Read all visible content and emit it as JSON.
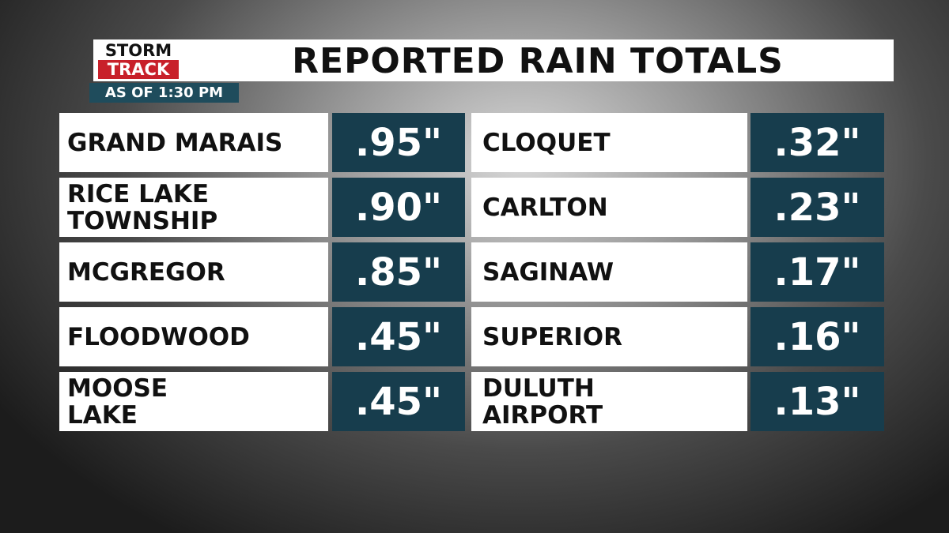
{
  "header": {
    "logo": [
      "STORM",
      "TRACK"
    ],
    "title": "REPORTED RAIN TOTALS",
    "subtitle": "AS OF 1:30 PM"
  },
  "table": {
    "columns": [
      [
        {
          "name": [
            "GRAND MARAIS"
          ],
          "total": ".95\""
        },
        {
          "name": [
            "RICE LAKE",
            "TOWNSHIP"
          ],
          "total": ".90\""
        },
        {
          "name": [
            "MCGREGOR"
          ],
          "total": ".85\""
        },
        {
          "name": [
            "FLOODWOOD"
          ],
          "total": ".45\""
        },
        {
          "name": [
            "MOOSE",
            "LAKE"
          ],
          "total": ".45\""
        }
      ],
      [
        {
          "name": [
            "CLOQUET"
          ],
          "total": ".32\""
        },
        {
          "name": [
            "CARLTON"
          ],
          "total": ".23\""
        },
        {
          "name": [
            "SAGINAW"
          ],
          "total": ".17\""
        },
        {
          "name": [
            "SUPERIOR"
          ],
          "total": ".16\""
        },
        {
          "name": [
            "DULUTH",
            "AIRPORT"
          ],
          "total": ".13\""
        }
      ]
    ]
  }
}
